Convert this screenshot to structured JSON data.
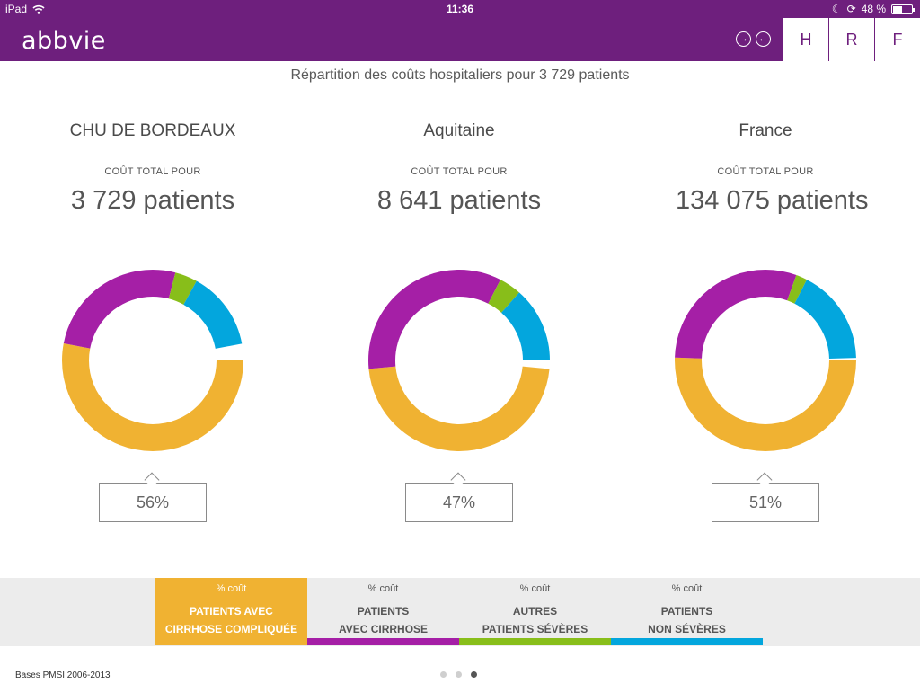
{
  "status_bar": {
    "device": "iPad",
    "time": "11:36",
    "battery": "48 %",
    "battery_level": 0.48
  },
  "header": {
    "logo": "abbvie",
    "nav_forward": "→",
    "nav_back": "←",
    "tabs": [
      {
        "label": "H"
      },
      {
        "label": "R"
      },
      {
        "label": "F"
      }
    ]
  },
  "main": {
    "title": "Répartition des coûts hospitaliers pour 3 729 patients"
  },
  "colors": {
    "cirrhose_compliquee": "#f0b232",
    "avec_cirrhose": "#a51fa6",
    "autres_severes": "#88be1a",
    "non_severes": "#03a6dd"
  },
  "regions": [
    {
      "name": "CHU DE BORDEAUX",
      "subhead": "COÛT TOTAL POUR",
      "count": "3 729 patients",
      "percent_label": "56%",
      "segments": [
        0.56,
        0.26,
        0.04,
        0.14
      ]
    },
    {
      "name": "Aquitaine",
      "subhead": "COÛT TOTAL POUR",
      "count": "8 641 patients",
      "percent_label": "47%",
      "segments": [
        0.47,
        0.34,
        0.04,
        0.15
      ]
    },
    {
      "name": "France",
      "subhead": "COÛT TOTAL POUR",
      "count": "134 075 patients",
      "percent_label": "51%",
      "segments": [
        0.51,
        0.3,
        0.02,
        0.17
      ]
    }
  ],
  "legend": [
    {
      "pct": "% coût",
      "line1": "PATIENTS AVEC",
      "line2": "CIRRHOSE COMPLIQUÉE"
    },
    {
      "pct": "% coût",
      "line1": "PATIENTS",
      "line2": "AVEC CIRRHOSE"
    },
    {
      "pct": "% coût",
      "line1": "AUTRES",
      "line2": "PATIENTS SÉVÈRES"
    },
    {
      "pct": "% coût",
      "line1": "PATIENTS",
      "line2": "NON SÉVÈRES"
    }
  ],
  "footer": {
    "source": "Bases PMSI 2006-2013",
    "page_dots": 3,
    "current_page": 3
  }
}
